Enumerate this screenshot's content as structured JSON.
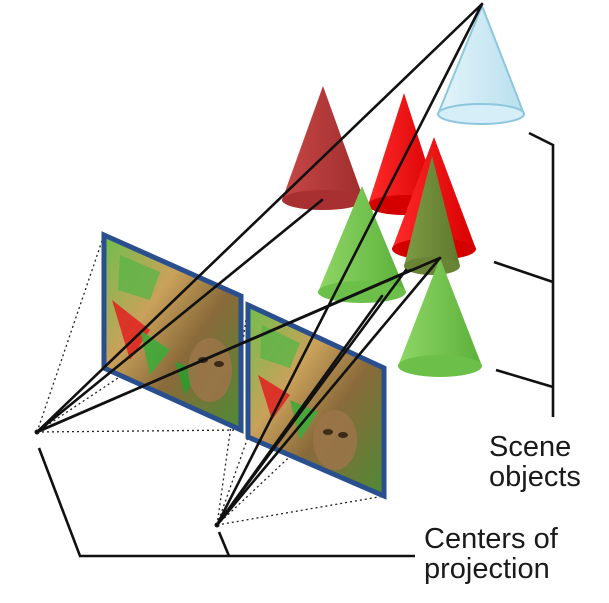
{
  "labels": {
    "scene_objects": [
      "Scene",
      "objects"
    ],
    "centers_of_projection": [
      "Centers of",
      "projection"
    ]
  },
  "colors": {
    "line": "#111111",
    "frame": "#2a4f8f",
    "cone_red": "#ee1111",
    "cone_dark_red": "#b23a3a",
    "cone_green": "#6ec24a",
    "cone_olive": "#6f8a3a",
    "cone_light_blue": "#c9e8f2"
  },
  "icons": [
    "cone",
    "image-plane",
    "bracket"
  ]
}
